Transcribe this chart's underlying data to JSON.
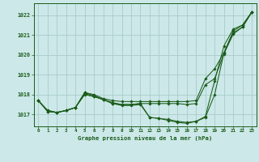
{
  "title": "Graphe pression niveau de la mer (hPa)",
  "background_color": "#cce8e8",
  "grid_color": "#aacccc",
  "line_color": "#1a5c1a",
  "xlim": [
    -0.5,
    23.5
  ],
  "ylim": [
    1016.4,
    1022.6
  ],
  "yticks": [
    1017,
    1018,
    1019,
    1020,
    1021,
    1022
  ],
  "xticks": [
    0,
    1,
    2,
    3,
    4,
    5,
    6,
    7,
    8,
    9,
    10,
    11,
    12,
    13,
    14,
    15,
    16,
    17,
    18,
    19,
    20,
    21,
    22,
    23
  ],
  "series": [
    [
      1017.7,
      1017.2,
      1017.1,
      1017.2,
      1017.35,
      1018.1,
      1017.95,
      1017.75,
      1017.55,
      1017.5,
      1017.5,
      1017.55,
      1016.85,
      1016.8,
      1016.75,
      1016.65,
      1016.6,
      1016.65,
      1016.9,
      1018.7,
      1020.45,
      1021.3,
      1021.5,
      1022.15
    ],
    [
      1017.7,
      1017.2,
      1017.1,
      1017.2,
      1017.35,
      1018.05,
      1017.9,
      1017.75,
      1017.55,
      1017.45,
      1017.45,
      1017.5,
      1016.85,
      1016.8,
      1016.7,
      1016.6,
      1016.55,
      1016.65,
      1016.85,
      1018.0,
      1020.1,
      1021.1,
      1021.4,
      1022.15
    ],
    [
      1017.7,
      1017.15,
      1017.1,
      1017.2,
      1017.35,
      1018.1,
      1018.0,
      1017.8,
      1017.7,
      1017.65,
      1017.65,
      1017.65,
      1017.65,
      1017.65,
      1017.65,
      1017.65,
      1017.65,
      1017.7,
      1018.8,
      1019.3,
      1020.1,
      1021.2,
      1021.5,
      1022.15
    ],
    [
      1017.7,
      1017.15,
      1017.1,
      1017.2,
      1017.35,
      1018.0,
      1017.9,
      1017.75,
      1017.6,
      1017.5,
      1017.5,
      1017.55,
      1017.55,
      1017.55,
      1017.55,
      1017.55,
      1017.5,
      1017.55,
      1018.5,
      1018.8,
      1020.05,
      1021.05,
      1021.4,
      1022.15
    ]
  ]
}
